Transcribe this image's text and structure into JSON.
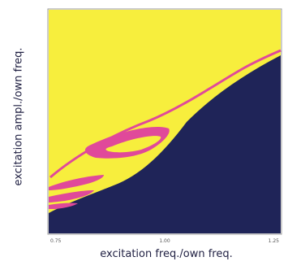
{
  "chart_data": {
    "type": "heatmap",
    "title": "",
    "xlabel": "excitation freq./own freq.",
    "ylabel": "excitation ampl./own freq.",
    "x_ticks": [
      "0.75",
      "1.00",
      "1.25"
    ],
    "xlim": [
      0.75,
      1.25
    ],
    "legend": "none",
    "grid": false,
    "regions": [
      {
        "color": "#f7ee3d"
      },
      {
        "color": "#1f2458"
      },
      {
        "color": "#e0499a"
      }
    ]
  }
}
